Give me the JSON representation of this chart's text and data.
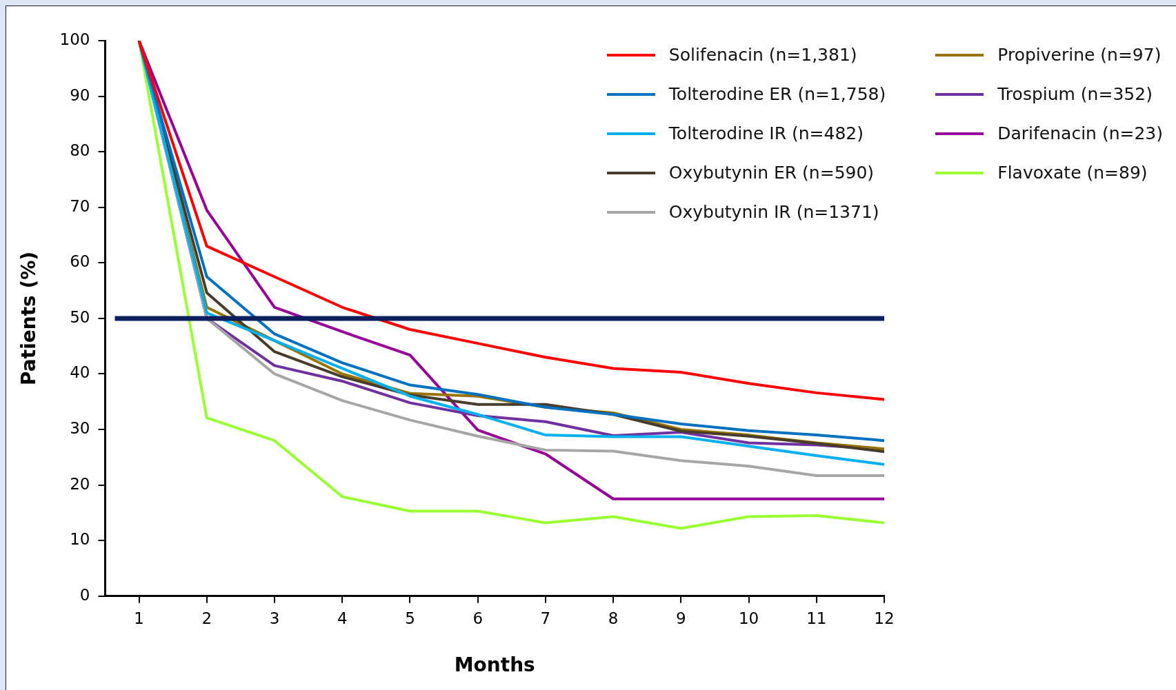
{
  "chart_data": {
    "type": "line",
    "xlabel": "Months",
    "ylabel": "Patients (%)",
    "x": [
      1,
      2,
      3,
      4,
      5,
      6,
      7,
      8,
      9,
      10,
      11,
      12
    ],
    "xlim": [
      0.5,
      12
    ],
    "xticks": [
      1,
      2,
      3,
      4,
      5,
      6,
      7,
      8,
      9,
      10,
      11,
      12
    ],
    "ylim": [
      0,
      100
    ],
    "yticks": [
      0,
      10,
      20,
      30,
      40,
      50,
      60,
      70,
      80,
      90,
      100
    ],
    "grid": false,
    "legend": "top right",
    "marker": "none",
    "line_style": "solid",
    "ref_lines": [
      {
        "axis": "y",
        "value": 50,
        "color": "#0a1f5c"
      }
    ],
    "series": [
      {
        "name": "Solifenacin (n=1,381)",
        "color": "#ff0000",
        "values": [
          100,
          63,
          57.5,
          52,
          48,
          45.5,
          43,
          41,
          40.3,
          38.3,
          36.6,
          35.4
        ]
      },
      {
        "name": "Tolterodine ER (n=1,758)",
        "color": "#0070c0",
        "values": [
          100,
          57.5,
          47.2,
          42,
          38,
          36.3,
          34,
          32.7,
          31,
          29.8,
          29,
          28
        ]
      },
      {
        "name": "Tolterodine IR (n=482)",
        "color": "#00b0f0",
        "values": [
          100,
          51,
          46,
          41,
          36,
          32.7,
          29,
          28.7,
          28.7,
          27,
          25.3,
          23.7
        ]
      },
      {
        "name": "Oxybutynin ER (n=590)",
        "color": "#4a3c2a",
        "values": [
          100,
          54.6,
          44,
          39.5,
          36.2,
          34.5,
          34.5,
          32.7,
          29.7,
          28.8,
          27.5,
          26
        ]
      },
      {
        "name": "Oxybutynin IR (n=1371)",
        "color": "#a6a6a6",
        "values": [
          100,
          50,
          40,
          35.2,
          31.7,
          28.8,
          26.3,
          26.1,
          24.4,
          23.4,
          21.7,
          21.7
        ]
      },
      {
        "name": "Propiverine (n=97)",
        "color": "#997300",
        "values": [
          100,
          52,
          46,
          40,
          36.5,
          36,
          34,
          33,
          30,
          29,
          27.6,
          26.5
        ]
      },
      {
        "name": "Trospium (n=352)",
        "color": "#7030a0",
        "values": [
          100,
          50,
          41.5,
          38.7,
          34.8,
          32.5,
          31.4,
          28.9,
          29.5,
          27.6,
          27.2,
          26.4
        ]
      },
      {
        "name": "Darifenacin (n=23)",
        "color": "#990099",
        "values": [
          100,
          69.5,
          52,
          47.6,
          43.4,
          29.9,
          25.6,
          17.5,
          17.5,
          17.5,
          17.5,
          17.5
        ]
      },
      {
        "name": "Flavoxate (n=89)",
        "color": "#99ff33",
        "values": [
          100,
          32.1,
          28,
          17.9,
          15.3,
          15.3,
          13.2,
          14.3,
          12.2,
          14.3,
          14.5,
          13.2
        ]
      }
    ]
  }
}
